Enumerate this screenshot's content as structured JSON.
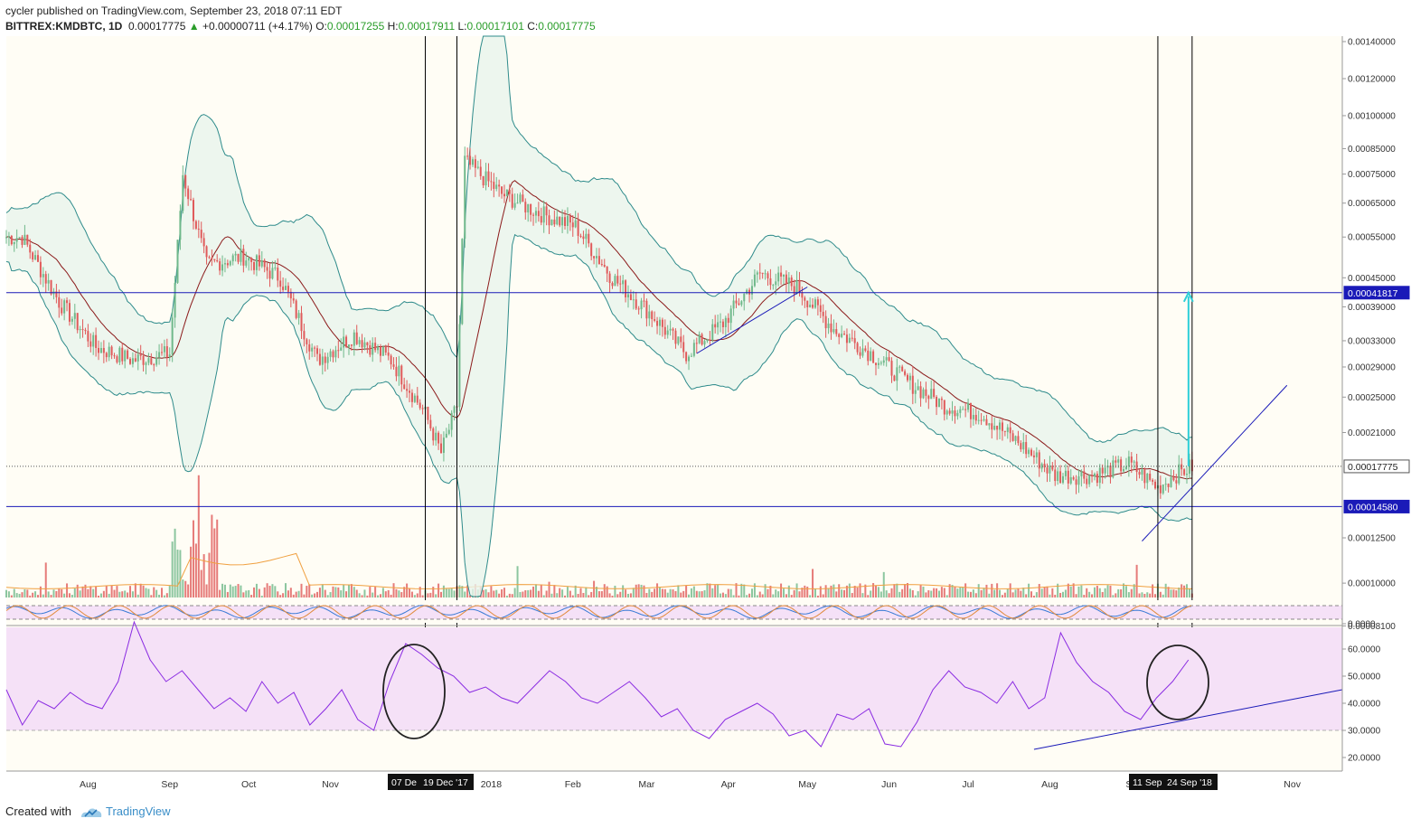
{
  "header": {
    "author": "cycler",
    "published_text": " published on TradingView.com, September 23, 2018 07:11 EDT",
    "symbol": "BITTREX:KMDBTC, 1D",
    "last": "0.00017775",
    "change": "+0.00000711 (+4.17%)",
    "o_label": "O:",
    "o": "0.00017255",
    "h_label": "H:",
    "h": "0.00017911",
    "l_label": "L:",
    "l": "0.00017101",
    "c_label": "C:",
    "c": "0.00017775"
  },
  "footer": {
    "created_with": "Created with",
    "brand": "TradingView"
  },
  "colors": {
    "background": "#fffdf5",
    "up_candle": "#6fb88a",
    "down_candle": "#e05a5a",
    "bb_band": "#2e8b8b",
    "bb_fill": "#e8f4ec",
    "basis": "#8b1a1a",
    "level_line": "#1a1ab8",
    "rsi_line": "#8a2be2",
    "rsi_fill": "#f5e1f7",
    "stoch_k": "#3a7bd5",
    "stoch_d": "#e08a3a",
    "target_arrow": "#2ecfd8",
    "volume_ma": "#f0a040"
  },
  "chart_data": {
    "type": "line",
    "title": "",
    "price_scale": "log",
    "y_ticks": [
      "0.00140000",
      "0.00120000",
      "0.00100000",
      "0.00085000",
      "0.00075000",
      "0.00065000",
      "0.00055000",
      "0.00045000",
      "0.00039000",
      "0.00033000",
      "0.00029000",
      "0.00025000",
      "0.00021000",
      "0.00012500",
      "0.00010000",
      "0.00008100",
      "0.0000"
    ],
    "x_ticks": [
      "Aug",
      "Sep",
      "Oct",
      "Nov",
      "2018",
      "Feb",
      "Mar",
      "Apr",
      "May",
      "Jun",
      "Jul",
      "Aug",
      "Se",
      "Nov"
    ],
    "date_markers": [
      "07 De",
      "19 Dec '17",
      "11 Sep",
      "24 Sep '18"
    ],
    "price_labels": {
      "resistance": "0.00041817",
      "current": "0.00017775",
      "support": "0.00014580"
    },
    "levels": {
      "resistance": 0.00041817,
      "current": 0.00017775,
      "support": 0.0001458
    },
    "series": [
      {
        "x": [
          "2017-07-07",
          "2017-07-21",
          "2017-08-04",
          "2017-08-18",
          "2017-09-01",
          "2017-09-06",
          "2017-09-15",
          "2017-09-29",
          "2017-10-13",
          "2017-10-27",
          "2017-11-10",
          "2017-11-24",
          "2017-12-07",
          "2017-12-13",
          "2017-12-19",
          "2017-12-22",
          "2018-01-05",
          "2018-01-19",
          "2018-02-02",
          "2018-02-16",
          "2018-03-02",
          "2018-03-16",
          "2018-03-30",
          "2018-04-13",
          "2018-04-27",
          "2018-05-11",
          "2018-05-25",
          "2018-06-08",
          "2018-06-22",
          "2018-07-06",
          "2018-07-20",
          "2018-08-03",
          "2018-08-17",
          "2018-08-31",
          "2018-09-11",
          "2018-09-17",
          "2018-09-24"
        ],
        "values": [
          0.00055,
          0.0004,
          0.00032,
          0.0003,
          0.00031,
          0.00075,
          0.00048,
          0.0005,
          0.00045,
          0.0003,
          0.00034,
          0.0003,
          0.00023,
          0.00019,
          0.00024,
          0.0008,
          0.00068,
          0.00062,
          0.00058,
          0.00045,
          0.00038,
          0.00031,
          0.00036,
          0.00046,
          0.00043,
          0.00035,
          0.00031,
          0.00027,
          0.00024,
          0.00023,
          0.0002,
          0.00017,
          0.00017,
          0.00018,
          0.00016,
          0.00017,
          0.00017775
        ]
      }
    ],
    "rsi": {
      "ticks": [
        "60.0000",
        "50.0000",
        "40.0000",
        "30.0000",
        "20.0000"
      ],
      "range": [
        15,
        68
      ],
      "levels": [
        70,
        30
      ],
      "values": [
        45,
        32,
        41,
        38,
        44,
        40,
        38,
        48,
        70,
        56,
        48,
        52,
        45,
        38,
        42,
        37,
        48,
        40,
        44,
        32,
        38,
        45,
        34,
        30,
        48,
        62,
        58,
        53,
        50,
        44,
        46,
        42,
        40,
        46,
        52,
        48,
        42,
        40,
        44,
        48,
        42,
        35,
        38,
        30,
        27,
        34,
        37,
        40,
        36,
        28,
        30,
        24,
        36,
        34,
        38,
        25,
        24,
        33,
        45,
        52,
        46,
        44,
        40,
        48,
        38,
        42,
        66,
        55,
        48,
        44,
        37,
        34,
        42,
        48,
        56
      ]
    },
    "stoch_rsi": {
      "upper": 80,
      "lower": 20
    }
  }
}
